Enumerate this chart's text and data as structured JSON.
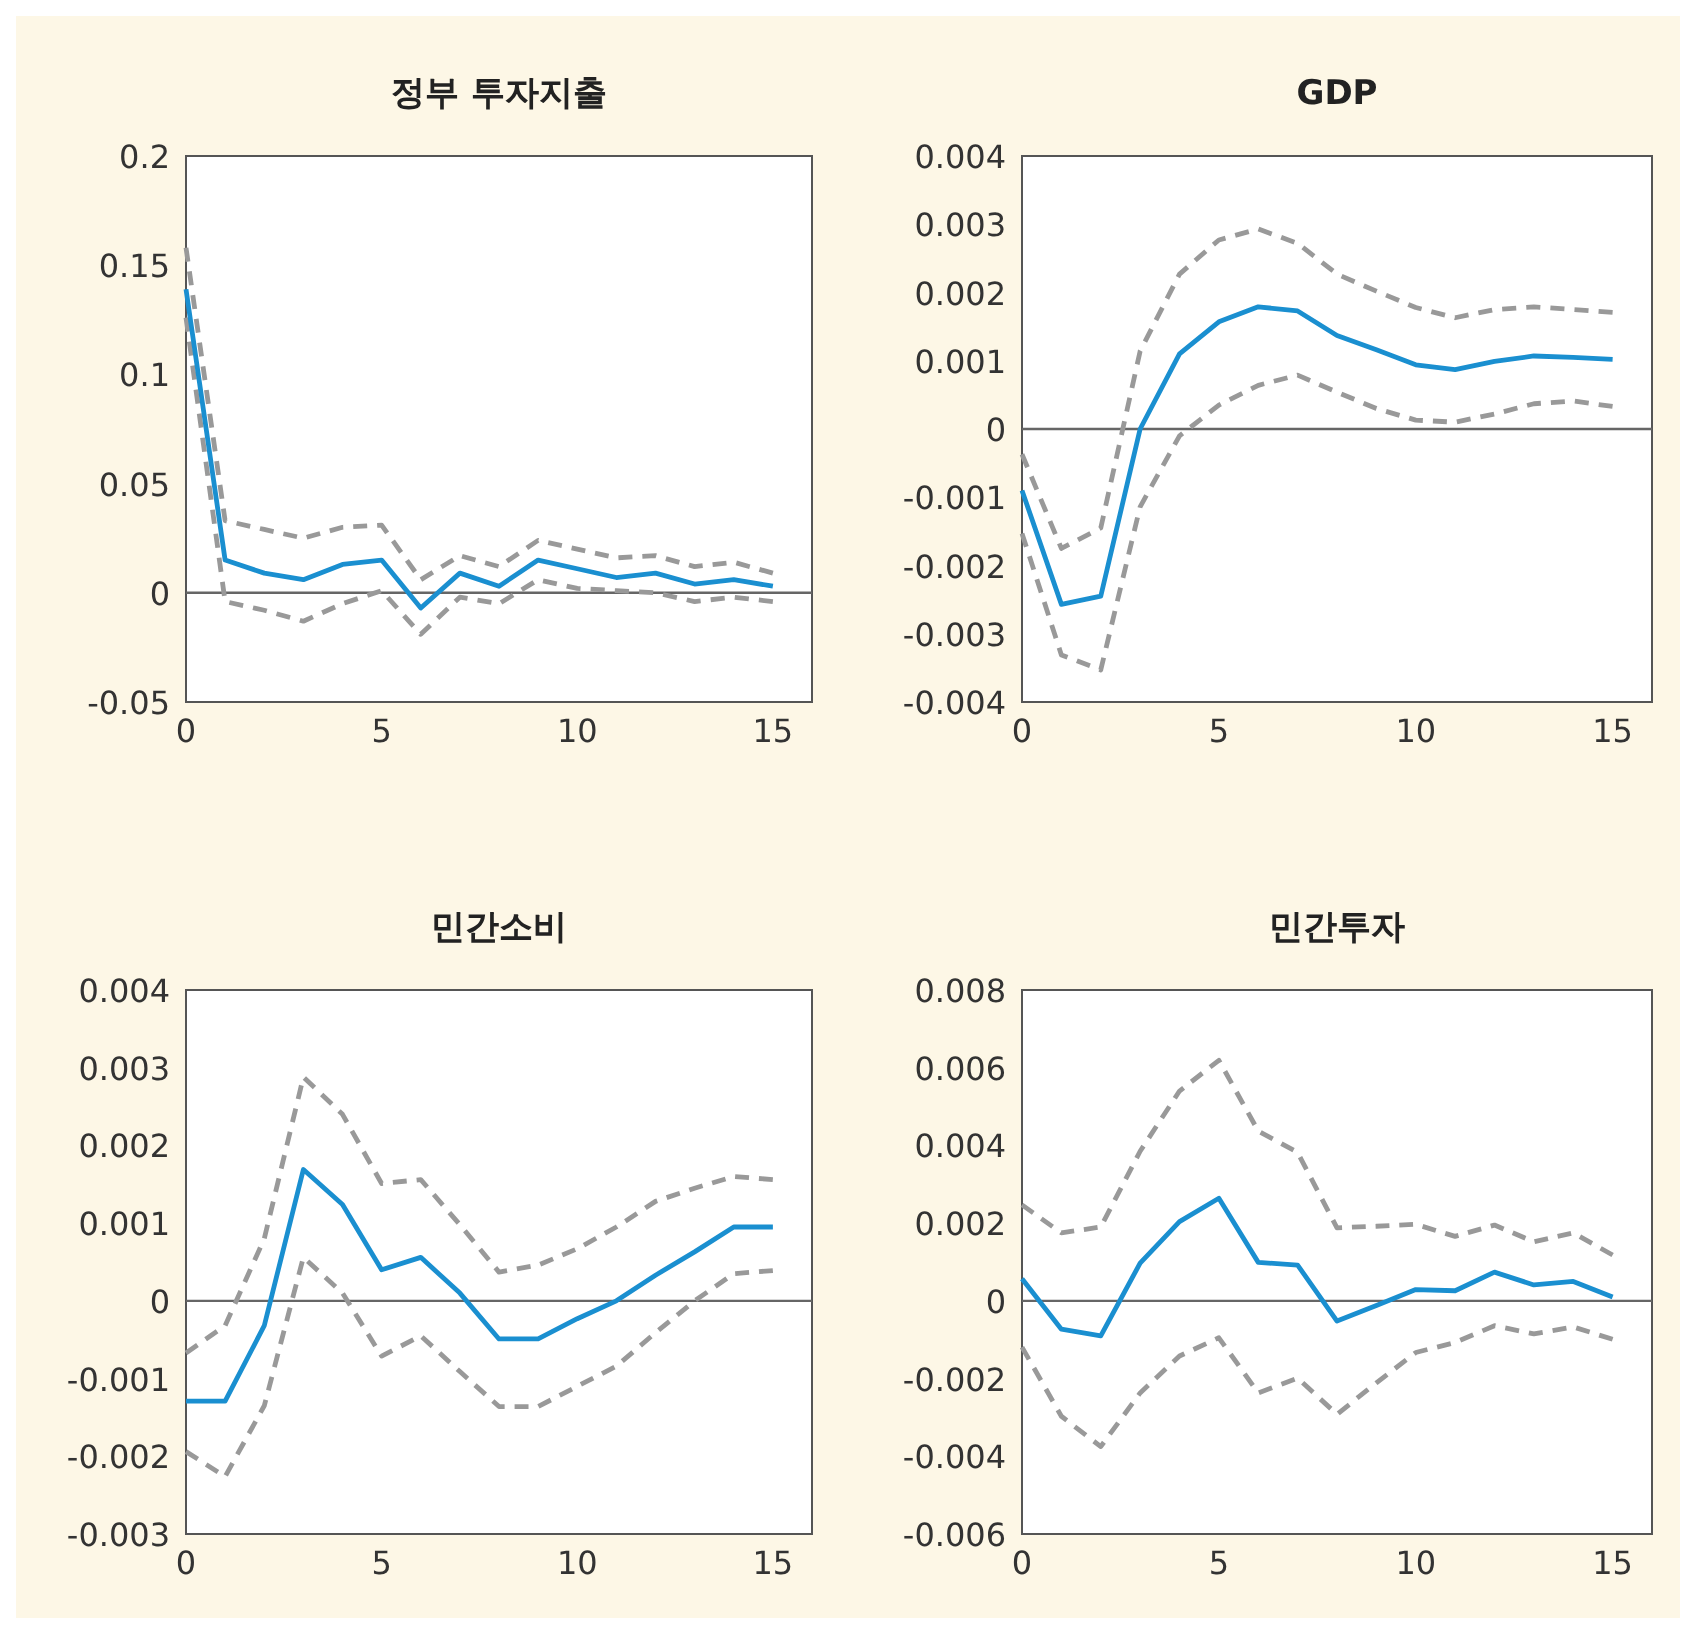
{
  "chart_data": [
    {
      "type": "line",
      "title": "정부 투자지출",
      "x": [
        0,
        1,
        2,
        3,
        4,
        5,
        6,
        7,
        8,
        9,
        10,
        11,
        12,
        13,
        14,
        15
      ],
      "xlim": [
        0,
        16
      ],
      "xticks": [
        0,
        5,
        10,
        15
      ],
      "ylim": [
        -0.05,
        0.2
      ],
      "yticks": [
        -0.05,
        0,
        0.05,
        0.1,
        0.15,
        0.2
      ],
      "ref_lines": [
        {
          "axis": "y",
          "value": 0,
          "color": "#666666"
        }
      ],
      "series": [
        {
          "color": "#1a8fd0",
          "line_style": "solid",
          "values": [
            0.139,
            0.015,
            0.009,
            0.006,
            0.013,
            0.015,
            -0.007,
            0.009,
            0.003,
            0.015,
            0.011,
            0.007,
            0.009,
            0.004,
            0.006,
            0.003
          ]
        },
        {
          "color": "#999999",
          "line_style": "dashed",
          "values": [
            0.158,
            0.033,
            0.029,
            0.025,
            0.03,
            0.031,
            0.006,
            0.017,
            0.012,
            0.024,
            0.02,
            0.016,
            0.017,
            0.012,
            0.014,
            0.009
          ]
        },
        {
          "color": "#999999",
          "line_style": "dashed",
          "values": [
            0.126,
            -0.004,
            -0.008,
            -0.013,
            -0.005,
            0.001,
            -0.019,
            -0.002,
            -0.005,
            0.006,
            0.002,
            0.001,
            0,
            -0.004,
            -0.002,
            -0.004
          ]
        }
      ]
    },
    {
      "type": "line",
      "title": "GDP",
      "x": [
        0,
        1,
        2,
        3,
        4,
        5,
        6,
        7,
        8,
        9,
        10,
        11,
        12,
        13,
        14,
        15
      ],
      "xlim": [
        0,
        16
      ],
      "xticks": [
        0,
        5,
        10,
        15
      ],
      "ylim": [
        -0.004,
        0.004
      ],
      "yticks": [
        -0.004,
        -0.003,
        -0.002,
        -0.001,
        0,
        0.001,
        0.002,
        0.003,
        0.004
      ],
      "ref_lines": [
        {
          "axis": "y",
          "value": 0,
          "color": "#666666"
        }
      ],
      "series": [
        {
          "color": "#1a8fd0",
          "line_style": "solid",
          "values": [
            -0.0009,
            -0.00257,
            -0.00245,
            0,
            0.0011,
            0.00157,
            0.00179,
            0.00173,
            0.00137,
            0.00116,
            0.00094,
            0.00087,
            0.00099,
            0.00107,
            0.00105,
            0.00102
          ]
        },
        {
          "color": "#999999",
          "line_style": "dashed",
          "values": [
            -0.00037,
            -0.00175,
            -0.00145,
            0.00114,
            0.00227,
            0.00277,
            0.00293,
            0.00272,
            0.00227,
            0.00202,
            0.00178,
            0.00163,
            0.00175,
            0.00179,
            0.00175,
            0.00171
          ]
        },
        {
          "color": "#999999",
          "line_style": "dashed",
          "values": [
            -0.00153,
            -0.00331,
            -0.00353,
            -0.00114,
            -0.0001,
            0.00035,
            0.00064,
            0.00079,
            0.00054,
            0.0003,
            0.00013,
            0.0001,
            0.00022,
            0.00037,
            0.00041,
            0.00033
          ]
        }
      ]
    },
    {
      "type": "line",
      "title": "민간소비",
      "x": [
        0,
        1,
        2,
        3,
        4,
        5,
        6,
        7,
        8,
        9,
        10,
        11,
        12,
        13,
        14,
        15
      ],
      "xlim": [
        0,
        16
      ],
      "xticks": [
        0,
        5,
        10,
        15
      ],
      "ylim": [
        -0.003,
        0.004
      ],
      "yticks": [
        -0.003,
        -0.002,
        -0.001,
        0,
        0.001,
        0.002,
        0.003,
        0.004
      ],
      "ref_lines": [
        {
          "axis": "y",
          "value": 0,
          "color": "#666666"
        }
      ],
      "series": [
        {
          "color": "#1a8fd0",
          "line_style": "solid",
          "values": [
            -0.00129,
            -0.00129,
            -0.00032,
            0.00169,
            0.00124,
            0.0004,
            0.00056,
            0.0001,
            -0.00049,
            -0.00049,
            -0.00023,
            0,
            0.00033,
            0.00063,
            0.00095,
            0.00095
          ]
        },
        {
          "color": "#999999",
          "line_style": "dashed",
          "values": [
            -0.00067,
            -0.00032,
            0.0008,
            0.00288,
            0.0024,
            0.00151,
            0.00156,
            0.00098,
            0.00037,
            0.00046,
            0.00067,
            0.00095,
            0.00128,
            0.00145,
            0.0016,
            0.00156
          ]
        },
        {
          "color": "#999999",
          "line_style": "dashed",
          "values": [
            -0.00194,
            -0.00226,
            -0.00135,
            0.00056,
            0.0001,
            -0.00071,
            -0.00045,
            -0.00091,
            -0.00136,
            -0.00136,
            -0.0011,
            -0.00084,
            -0.00041,
            0,
            0.00035,
            0.00039
          ]
        }
      ]
    },
    {
      "type": "line",
      "title": "민간투자",
      "x": [
        0,
        1,
        2,
        3,
        4,
        5,
        6,
        7,
        8,
        9,
        10,
        11,
        12,
        13,
        14,
        15
      ],
      "xlim": [
        0,
        16
      ],
      "xticks": [
        0,
        5,
        10,
        15
      ],
      "ylim": [
        -0.006,
        0.008
      ],
      "yticks": [
        -0.006,
        -0.004,
        -0.002,
        0,
        0.002,
        0.004,
        0.006,
        0.008
      ],
      "ref_lines": [
        {
          "axis": "y",
          "value": 0,
          "color": "#666666"
        }
      ],
      "series": [
        {
          "color": "#1a8fd0",
          "line_style": "solid",
          "values": [
            0.00057,
            -0.00073,
            -0.0009,
            0.00097,
            0.00204,
            0.00264,
            0.00099,
            0.00092,
            -0.00052,
            -0.00012,
            0.00029,
            0.00026,
            0.00074,
            0.00041,
            0.0005,
            0.0001
          ]
        },
        {
          "color": "#999999",
          "line_style": "dashed",
          "values": [
            0.00247,
            0.00175,
            0.0019,
            0.00385,
            0.0054,
            0.00619,
            0.00437,
            0.00382,
            0.00188,
            0.00192,
            0.00197,
            0.00166,
            0.00195,
            0.00152,
            0.00175,
            0.00118
          ]
        },
        {
          "color": "#999999",
          "line_style": "dashed",
          "values": [
            -0.00119,
            -0.00297,
            -0.00375,
            -0.00237,
            -0.00142,
            -0.00095,
            -0.00237,
            -0.00199,
            -0.00292,
            -0.00211,
            -0.00133,
            -0.00107,
            -0.00064,
            -0.00085,
            -0.00067,
            -0.00099
          ]
        }
      ]
    }
  ]
}
